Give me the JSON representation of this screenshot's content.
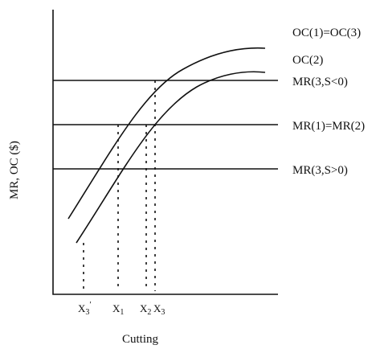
{
  "axes": {
    "y_label": "MR, OC ($)",
    "x_label": "Cutting"
  },
  "curves": {
    "oc1_oc3": "OC(1)=OC(3)",
    "oc2": "OC(2)"
  },
  "lines": {
    "mr3_neg": "MR(3,S<0)",
    "mr1_mr2": "MR(1)=MR(2)",
    "mr3_pos": "MR(3,S>0)"
  },
  "ticks": {
    "x3_prime": {
      "base": "X",
      "sub": "3",
      "sup": "′"
    },
    "x1": {
      "base": "X",
      "sub": "1"
    },
    "x2": {
      "base": "X",
      "sub": "2"
    },
    "x3": {
      "base": "X",
      "sub": "3"
    }
  }
}
